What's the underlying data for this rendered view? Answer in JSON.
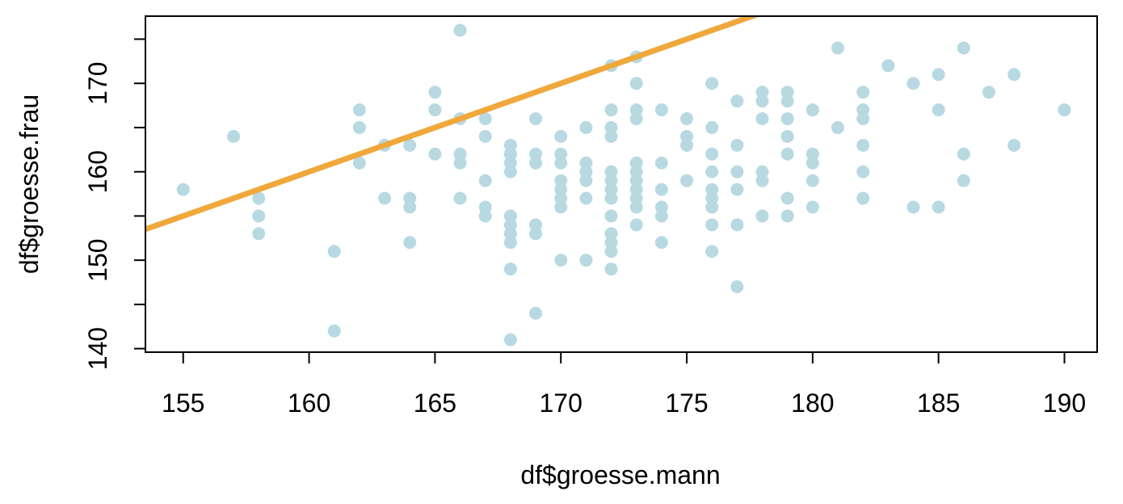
{
  "chart_data": {
    "type": "scatter",
    "xlabel": "df$groesse.mann",
    "ylabel": "df$groesse.frau",
    "xlim": [
      153.5,
      191.3
    ],
    "ylim": [
      139.6,
      177.6
    ],
    "x_ticks": [
      155,
      160,
      165,
      170,
      175,
      180,
      185,
      190
    ],
    "y_ticks": [
      140,
      145,
      150,
      155,
      160,
      165,
      170,
      175
    ],
    "y_tick_labels": [
      "140",
      "",
      "150",
      "",
      "160",
      "",
      "170",
      ""
    ],
    "grid": false,
    "point_color": "#b8d9e2",
    "line_color": "#f0a83c",
    "reference_line": {
      "intercept": 0,
      "slope": 1
    },
    "series": [
      {
        "points": [
          [
            155,
            158
          ],
          [
            157,
            164
          ],
          [
            158,
            157
          ],
          [
            158,
            155
          ],
          [
            158,
            153
          ],
          [
            161,
            151
          ],
          [
            161,
            142
          ],
          [
            162,
            167
          ],
          [
            162,
            165
          ],
          [
            162,
            161
          ],
          [
            163,
            163
          ],
          [
            163,
            157
          ],
          [
            164,
            163
          ],
          [
            164,
            157
          ],
          [
            164,
            156
          ],
          [
            164,
            152
          ],
          [
            165,
            169
          ],
          [
            165,
            167
          ],
          [
            165,
            162
          ],
          [
            166,
            176
          ],
          [
            166,
            166
          ],
          [
            166,
            162
          ],
          [
            166,
            161
          ],
          [
            166,
            157
          ],
          [
            167,
            166
          ],
          [
            167,
            164
          ],
          [
            167,
            159
          ],
          [
            167,
            156
          ],
          [
            167,
            155
          ],
          [
            168,
            163
          ],
          [
            168,
            162
          ],
          [
            168,
            161
          ],
          [
            168,
            160
          ],
          [
            168,
            155
          ],
          [
            168,
            154
          ],
          [
            168,
            153
          ],
          [
            168,
            152
          ],
          [
            168,
            149
          ],
          [
            168,
            141
          ],
          [
            169,
            166
          ],
          [
            169,
            162
          ],
          [
            169,
            161
          ],
          [
            169,
            154
          ],
          [
            169,
            153
          ],
          [
            169,
            144
          ],
          [
            170,
            164
          ],
          [
            170,
            162
          ],
          [
            170,
            161
          ],
          [
            170,
            159
          ],
          [
            170,
            158
          ],
          [
            170,
            157
          ],
          [
            170,
            156
          ],
          [
            170,
            150
          ],
          [
            171,
            165
          ],
          [
            171,
            161
          ],
          [
            171,
            160
          ],
          [
            171,
            159
          ],
          [
            171,
            157
          ],
          [
            171,
            150
          ],
          [
            172,
            172
          ],
          [
            172,
            167
          ],
          [
            172,
            165
          ],
          [
            172,
            164
          ],
          [
            172,
            160
          ],
          [
            172,
            159
          ],
          [
            172,
            158
          ],
          [
            172,
            157
          ],
          [
            172,
            155
          ],
          [
            172,
            153
          ],
          [
            172,
            152
          ],
          [
            172,
            151
          ],
          [
            172,
            149
          ],
          [
            173,
            173
          ],
          [
            173,
            170
          ],
          [
            173,
            167
          ],
          [
            173,
            166
          ],
          [
            173,
            161
          ],
          [
            173,
            160
          ],
          [
            173,
            159
          ],
          [
            173,
            158
          ],
          [
            173,
            157
          ],
          [
            173,
            156
          ],
          [
            173,
            154
          ],
          [
            174,
            167
          ],
          [
            174,
            161
          ],
          [
            174,
            158
          ],
          [
            174,
            156
          ],
          [
            174,
            155
          ],
          [
            174,
            152
          ],
          [
            175,
            166
          ],
          [
            175,
            164
          ],
          [
            175,
            163
          ],
          [
            175,
            159
          ],
          [
            176,
            170
          ],
          [
            176,
            165
          ],
          [
            176,
            162
          ],
          [
            176,
            160
          ],
          [
            176,
            158
          ],
          [
            176,
            157
          ],
          [
            176,
            156
          ],
          [
            176,
            154
          ],
          [
            176,
            151
          ],
          [
            177,
            168
          ],
          [
            177,
            163
          ],
          [
            177,
            160
          ],
          [
            177,
            158
          ],
          [
            177,
            154
          ],
          [
            177,
            147
          ],
          [
            178,
            169
          ],
          [
            178,
            168
          ],
          [
            178,
            166
          ],
          [
            178,
            160
          ],
          [
            178,
            159
          ],
          [
            178,
            155
          ],
          [
            179,
            169
          ],
          [
            179,
            168
          ],
          [
            179,
            166
          ],
          [
            179,
            164
          ],
          [
            179,
            162
          ],
          [
            179,
            157
          ],
          [
            179,
            155
          ],
          [
            180,
            167
          ],
          [
            180,
            162
          ],
          [
            180,
            161
          ],
          [
            180,
            159
          ],
          [
            180,
            156
          ],
          [
            181,
            174
          ],
          [
            181,
            165
          ],
          [
            182,
            169
          ],
          [
            182,
            167
          ],
          [
            182,
            166
          ],
          [
            182,
            163
          ],
          [
            182,
            160
          ],
          [
            182,
            157
          ],
          [
            183,
            172
          ],
          [
            184,
            170
          ],
          [
            184,
            156
          ],
          [
            185,
            171
          ],
          [
            185,
            167
          ],
          [
            185,
            156
          ],
          [
            186,
            174
          ],
          [
            186,
            162
          ],
          [
            186,
            159
          ],
          [
            187,
            169
          ],
          [
            188,
            171
          ],
          [
            188,
            163
          ],
          [
            190,
            167
          ]
        ]
      }
    ]
  }
}
